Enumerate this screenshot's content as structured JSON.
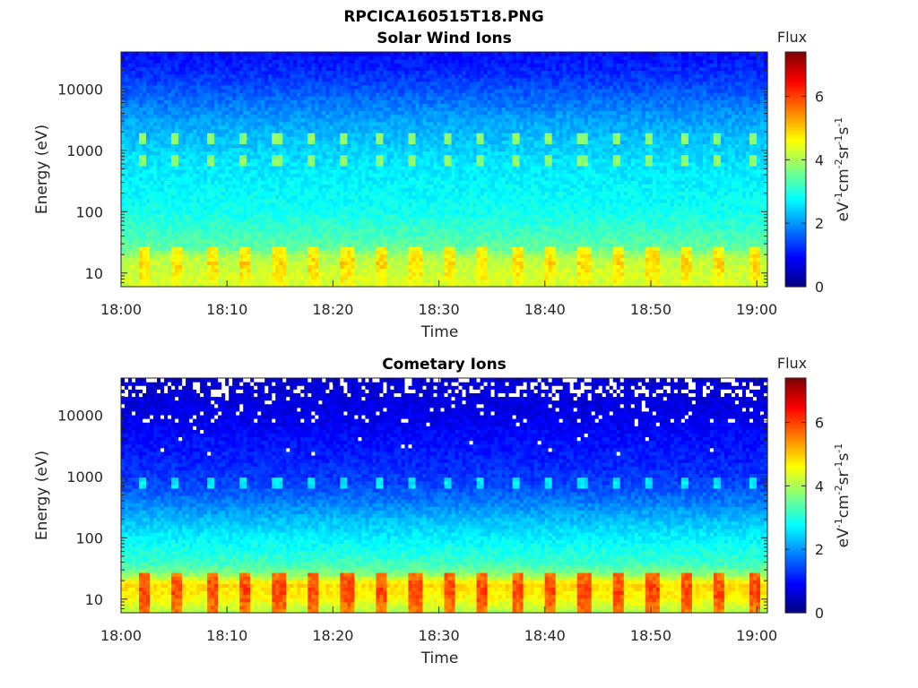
{
  "figure": {
    "filename": "RPCICA160515T18.PNG"
  },
  "chart_data": [
    {
      "type": "heatmap",
      "title": "Solar Wind Ions",
      "xlabel": "Time",
      "ylabel": "Energy (eV)",
      "x_ticks": [
        "18:00",
        "18:10",
        "18:20",
        "18:30",
        "18:40",
        "18:50",
        "19:00"
      ],
      "x_range_minutes": [
        0,
        61
      ],
      "y_scale": "log",
      "y_ticks": [
        10,
        100,
        1000,
        10000
      ],
      "y_tick_labels": [
        "10",
        "100",
        "1000",
        "10000"
      ],
      "y_range": [
        6,
        40000
      ],
      "colorbar": {
        "title": "Flux",
        "label": "eV-1cm-2sr-1s-1",
        "label_parts": {
          "a": "eV",
          "b": "cm",
          "c": "sr",
          "d": "s",
          "sup": "-1",
          "sup2": "-2"
        },
        "colormap": "jet",
        "range": [
          0,
          7.4
        ],
        "ticks": [
          0,
          2,
          4,
          6
        ],
        "tick_labels": [
          "0",
          "2",
          "4",
          "6"
        ]
      },
      "profile": {
        "description_levels_by_log10_energy": [
          [
            0.78,
            4.3
          ],
          [
            1.0,
            4.3
          ],
          [
            1.25,
            4.1
          ],
          [
            1.4,
            3.5
          ],
          [
            1.7,
            3.2
          ],
          [
            2.0,
            2.9
          ],
          [
            2.5,
            2.7
          ],
          [
            2.8,
            2.6
          ],
          [
            3.0,
            2.45
          ],
          [
            3.5,
            2.1
          ],
          [
            3.8,
            1.75
          ],
          [
            4.2,
            1.3
          ],
          [
            4.6,
            1.0
          ]
        ],
        "periodic_enhancement": {
          "period_minutes": 3.2,
          "low_energy_peak": 4.9,
          "mid_energy_peak": 3.8,
          "mid_energy_bands_eV": [
            700,
            1600
          ]
        },
        "dropouts": false
      }
    },
    {
      "type": "heatmap",
      "title": "Cometary Ions",
      "xlabel": "Time",
      "ylabel": "Energy (eV)",
      "x_ticks": [
        "18:00",
        "18:10",
        "18:20",
        "18:30",
        "18:40",
        "18:50",
        "19:00"
      ],
      "x_range_minutes": [
        0,
        61
      ],
      "y_scale": "log",
      "y_ticks": [
        10,
        100,
        1000,
        10000
      ],
      "y_tick_labels": [
        "10",
        "100",
        "1000",
        "10000"
      ],
      "y_range": [
        6,
        40000
      ],
      "colorbar": {
        "title": "Flux",
        "label": "eV-1cm-2sr-1s-1",
        "label_parts": {
          "a": "eV",
          "b": "cm",
          "c": "sr",
          "d": "s",
          "sup": "-1",
          "sup2": "-2"
        },
        "colormap": "jet",
        "range": [
          0,
          7.4
        ],
        "ticks": [
          0,
          2,
          4,
          6
        ],
        "tick_labels": [
          "0",
          "2",
          "4",
          "6"
        ]
      },
      "profile": {
        "description_levels_by_log10_energy": [
          [
            0.78,
            4.0
          ],
          [
            1.0,
            4.6
          ],
          [
            1.25,
            4.9
          ],
          [
            1.4,
            3.8
          ],
          [
            1.6,
            3.2
          ],
          [
            2.0,
            2.7
          ],
          [
            2.3,
            2.3
          ],
          [
            2.6,
            1.8
          ],
          [
            2.9,
            1.4
          ],
          [
            3.2,
            1.2
          ],
          [
            3.6,
            1.0
          ],
          [
            4.0,
            0.75
          ],
          [
            4.6,
            0.6
          ]
        ],
        "periodic_enhancement": {
          "period_minutes": 3.2,
          "low_energy_peak": 6.0,
          "mid_energy_peak": 2.6,
          "mid_energy_bands_eV": [
            800
          ]
        },
        "dropouts": true
      }
    }
  ]
}
